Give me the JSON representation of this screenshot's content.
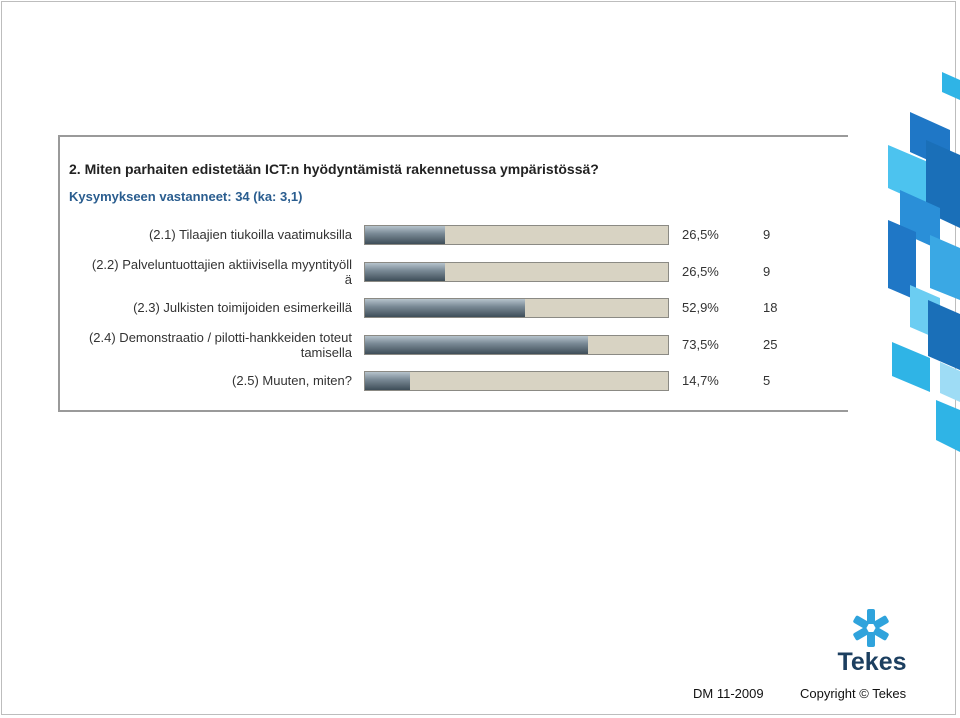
{
  "chart_data": {
    "type": "bar",
    "title": "2. Miten parhaiten edistetään ICT:n hyödyntämistä rakennetussa ympäristössä?",
    "subtitle": "Kysymykseen vastanneet: 34 (ka: 3,1)",
    "xlim": [
      0,
      100
    ],
    "categories": [
      [
        "(2.1) Tilaajien tiukoilla vaatimuksilla"
      ],
      [
        "(2.2) Palveluntuottajien aktiivisella myyntityöll",
        "ä"
      ],
      [
        "(2.3) Julkisten toimijoiden esimerkeillä"
      ],
      [
        "(2.4) Demonstraatio / pilotti-hankkeiden toteut",
        "tamisella"
      ],
      [
        "(2.5) Muuten, miten?"
      ]
    ],
    "values": [
      26.5,
      26.5,
      52.9,
      73.5,
      14.7
    ],
    "percent_labels": [
      "26,5%",
      "26,5%",
      "52,9%",
      "73,5%",
      "14,7%"
    ],
    "counts": [
      "9",
      "9",
      "18",
      "25",
      "5"
    ]
  },
  "colors": {
    "track": "#d8d3c3",
    "fill": "#5b6b77",
    "subtitle": "#2a5d8f",
    "accent_blue": "#1f77c6",
    "accent_cyan": "#2fb4e6"
  },
  "logo": {
    "icon": "asterisk-icon",
    "text": "Tekes"
  },
  "footer": {
    "dm": "DM  11-2009",
    "copyright": "Copyright © Tekes"
  }
}
